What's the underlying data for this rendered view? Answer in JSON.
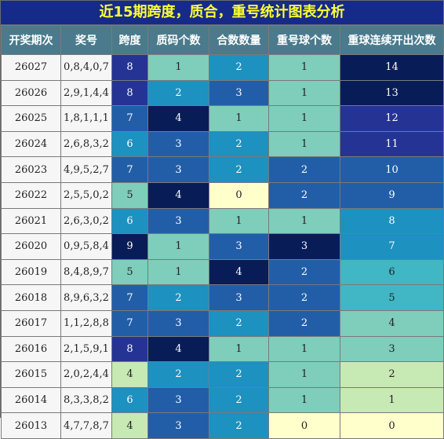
{
  "title": "近15期跨度，质合，重号统计图表分析",
  "headers": [
    "开奖期次",
    "奖号",
    "跨度",
    "质码个数",
    "合数数量",
    "重号球个数",
    "重球连续开出次数"
  ],
  "colors": {
    "title_bg": "#162a8a",
    "title_fg": "#ffff33",
    "header_bg": "#4a7a8c",
    "palette": [
      "#ffffcc",
      "#c7e9b4",
      "#7fcdbb",
      "#41b6c4",
      "#1d91c0",
      "#225ea8",
      "#253494",
      "#081d58"
    ]
  },
  "rows": [
    {
      "issue": "26027",
      "numbers": "0,8,4,0,7",
      "span": "8",
      "prime": "1",
      "composite": "2",
      "repeat": "1",
      "streak": "14"
    },
    {
      "issue": "26026",
      "numbers": "2,9,1,4,4",
      "span": "8",
      "prime": "2",
      "composite": "3",
      "repeat": "1",
      "streak": "13"
    },
    {
      "issue": "26025",
      "numbers": "1,8,1,1,1",
      "span": "7",
      "prime": "4",
      "composite": "1",
      "repeat": "1",
      "streak": "12"
    },
    {
      "issue": "26024",
      "numbers": "2,6,8,3,2",
      "span": "6",
      "prime": "3",
      "composite": "2",
      "repeat": "1",
      "streak": "11"
    },
    {
      "issue": "26023",
      "numbers": "4,9,5,2,7",
      "span": "7",
      "prime": "3",
      "composite": "2",
      "repeat": "2",
      "streak": "10"
    },
    {
      "issue": "26022",
      "numbers": "2,5,5,0,2",
      "span": "5",
      "prime": "4",
      "composite": "0",
      "repeat": "2",
      "streak": "9"
    },
    {
      "issue": "26021",
      "numbers": "2,6,3,0,2",
      "span": "6",
      "prime": "3",
      "composite": "1",
      "repeat": "1",
      "streak": "8"
    },
    {
      "issue": "26020",
      "numbers": "0,9,5,8,4",
      "span": "9",
      "prime": "1",
      "composite": "3",
      "repeat": "3",
      "streak": "7"
    },
    {
      "issue": "26019",
      "numbers": "8,4,8,9,7",
      "span": "5",
      "prime": "1",
      "composite": "4",
      "repeat": "2",
      "streak": "6"
    },
    {
      "issue": "26018",
      "numbers": "8,9,6,3,2",
      "span": "7",
      "prime": "2",
      "composite": "3",
      "repeat": "2",
      "streak": "5"
    },
    {
      "issue": "26017",
      "numbers": "1,1,2,8,8",
      "span": "7",
      "prime": "3",
      "composite": "2",
      "repeat": "2",
      "streak": "4"
    },
    {
      "issue": "26016",
      "numbers": "2,1,5,9,1",
      "span": "8",
      "prime": "4",
      "composite": "1",
      "repeat": "1",
      "streak": "3"
    },
    {
      "issue": "26015",
      "numbers": "2,0,2,4,4",
      "span": "4",
      "prime": "2",
      "composite": "2",
      "repeat": "1",
      "streak": "2"
    },
    {
      "issue": "26014",
      "numbers": "8,3,3,8,2",
      "span": "6",
      "prime": "3",
      "composite": "2",
      "repeat": "1",
      "streak": "1"
    },
    {
      "issue": "26013",
      "numbers": "4,7,7,8,7",
      "span": "4",
      "prime": "3",
      "composite": "2",
      "repeat": "0",
      "streak": "0"
    }
  ]
}
